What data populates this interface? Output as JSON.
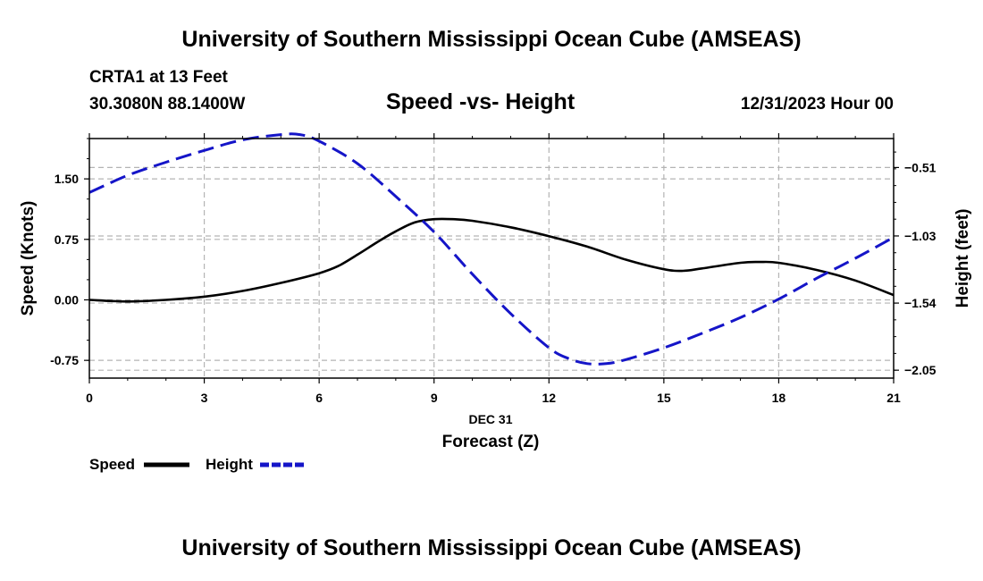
{
  "header": {
    "title": "University of Southern Mississippi Ocean Cube (AMSEAS)",
    "station": "CRTA1 at 13 Feet",
    "coords": "30.3080N  88.1400W",
    "datetime": "12/31/2023 Hour 00"
  },
  "footer": {
    "title": "University of Southern Mississippi Ocean Cube (AMSEAS)"
  },
  "colors": {
    "speed": "#000000",
    "height": "#1515c8",
    "grid": "#b4b4b4"
  },
  "chart_data": {
    "type": "line",
    "title": "Speed -vs- Height",
    "xlabel": "Forecast (Z)",
    "xlabel_date": "DEC 31",
    "ylabel": "Speed (Knots)",
    "y2label": "Height (feet)",
    "xlim": [
      0,
      21
    ],
    "ylim": [
      -0.97,
      2.0
    ],
    "y2lim": [
      -2.11,
      -0.29
    ],
    "xticks": [
      0,
      3,
      6,
      9,
      12,
      15,
      18,
      21
    ],
    "xtick_labels": [
      "0",
      "3",
      "6",
      "9",
      "12",
      "15",
      "18",
      "21"
    ],
    "yticks": [
      -0.75,
      0.0,
      0.75,
      1.5
    ],
    "ytick_labels": [
      "-0.75",
      "0.00",
      "0.75",
      "1.50"
    ],
    "y2ticks": [
      -2.05,
      -1.54,
      -1.03,
      -0.51
    ],
    "y2tick_labels": [
      "−2.05",
      "−1.54",
      "−1.03",
      "−0.51"
    ],
    "series": [
      {
        "name": "Speed",
        "axis": "left",
        "style": "solid",
        "x": [
          0,
          1,
          2,
          3,
          4,
          5,
          6,
          6.5,
          7,
          7.5,
          8,
          8.5,
          9,
          9.5,
          10,
          11,
          12,
          13,
          14,
          15,
          15.5,
          16,
          17,
          17.5,
          18,
          19,
          20,
          21
        ],
        "values": [
          0.0,
          -0.02,
          0.0,
          0.04,
          0.11,
          0.21,
          0.33,
          0.42,
          0.56,
          0.71,
          0.85,
          0.96,
          1.0,
          1.0,
          0.98,
          0.9,
          0.79,
          0.66,
          0.5,
          0.38,
          0.36,
          0.39,
          0.46,
          0.47,
          0.46,
          0.37,
          0.24,
          0.06
        ]
      },
      {
        "name": "Height",
        "axis": "right",
        "style": "dashed",
        "x": [
          0,
          1,
          2,
          3,
          4,
          5,
          5.5,
          6,
          7,
          8,
          9,
          10,
          11,
          12,
          12.5,
          13,
          13.5,
          14,
          15,
          16,
          17,
          18,
          19,
          20,
          21
        ],
        "values": [
          -0.7,
          -0.57,
          -0.47,
          -0.38,
          -0.3,
          -0.26,
          -0.26,
          -0.31,
          -0.48,
          -0.73,
          -1.0,
          -1.32,
          -1.62,
          -1.88,
          -1.96,
          -2.0,
          -2.0,
          -1.97,
          -1.88,
          -1.77,
          -1.65,
          -1.51,
          -1.35,
          -1.2,
          -1.04
        ]
      }
    ],
    "legend": [
      {
        "label": "Speed",
        "style": "solid"
      },
      {
        "label": "Height",
        "style": "dashed"
      }
    ]
  }
}
